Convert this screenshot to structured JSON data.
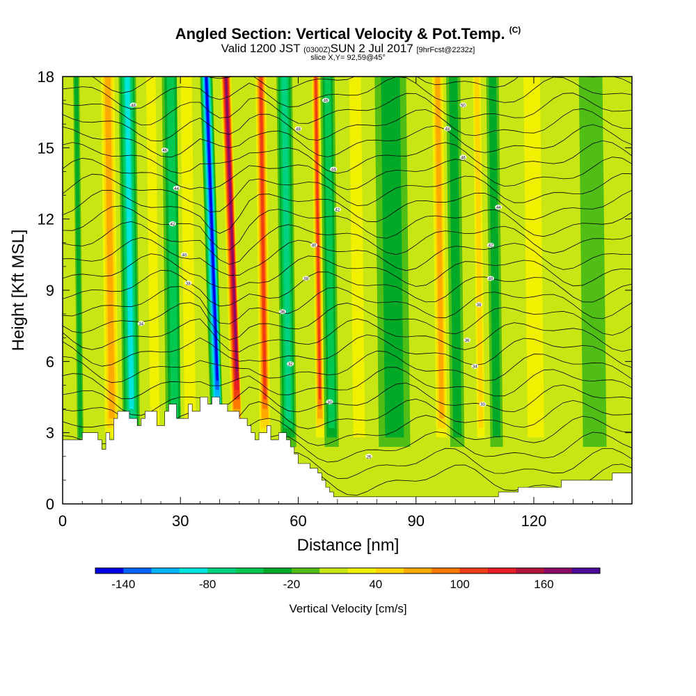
{
  "title": {
    "main": "Angled Section: Vertical Velocity & Pot.Temp.",
    "units": "(C)",
    "valid_prefix": "Valid 1200 JST",
    "valid_utc": "(0300Z)",
    "valid_date": "SUN 2 Jul 2017",
    "forecast": "[9hrFcst@2232z]",
    "slice": "slice X,Y= 92,59@45°"
  },
  "chart_data": {
    "type": "heatmap",
    "xlabel": "Distance [nm]",
    "ylabel": "Height [Kft MSL]",
    "xlim": [
      0,
      145
    ],
    "ylim": [
      0,
      18
    ],
    "x_ticks": [
      0,
      30,
      60,
      90,
      120
    ],
    "y_ticks": [
      0,
      3,
      6,
      9,
      12,
      15,
      18
    ],
    "colorbar": {
      "label": "Vertical Velocity [cm/s]",
      "ticks": [
        "-140",
        "-80",
        "-20",
        "40",
        "100",
        "160"
      ],
      "levels": [
        -160,
        -140,
        -120,
        -100,
        -80,
        -60,
        -40,
        -20,
        0,
        20,
        40,
        60,
        80,
        100,
        120,
        140,
        160,
        180
      ],
      "colors": [
        "#0000e6",
        "#0064ff",
        "#00b4ff",
        "#00e6dc",
        "#00d282",
        "#00c850",
        "#00aa28",
        "#50be14",
        "#c8e614",
        "#f0f000",
        "#ffd700",
        "#ffaa00",
        "#ff7800",
        "#f03c14",
        "#e61e28",
        "#b4143c",
        "#8c0a64",
        "#4b0a96"
      ]
    },
    "updraft_columns": [
      {
        "x": 4,
        "w": 0.8,
        "peak_cm_s": -40
      },
      {
        "x": 12,
        "w": 2.2,
        "peak_cm_s": 70
      },
      {
        "x": 17,
        "w": 2.2,
        "peak_cm_s": -100
      },
      {
        "x": 23,
        "w": 2.0,
        "peak_cm_s": 40
      },
      {
        "x": 28,
        "w": 2.2,
        "peak_cm_s": -60
      },
      {
        "x": 32,
        "w": 2.4,
        "peak_cm_s": 40
      },
      {
        "x": 38,
        "w": 1.6,
        "peak_cm_s": -150
      },
      {
        "x": 43,
        "w": 1.5,
        "peak_cm_s": 170
      },
      {
        "x": 51,
        "w": 1.6,
        "peak_cm_s": 110
      },
      {
        "x": 57,
        "w": 2.0,
        "peak_cm_s": -80
      },
      {
        "x": 65,
        "w": 1.2,
        "peak_cm_s": 120
      },
      {
        "x": 68,
        "w": 1.8,
        "peak_cm_s": -60
      },
      {
        "x": 75,
        "w": 2.5,
        "peak_cm_s": 30
      },
      {
        "x": 84,
        "w": 4.0,
        "peak_cm_s": -30
      },
      {
        "x": 96,
        "w": 1.8,
        "peak_cm_s": 70
      },
      {
        "x": 100,
        "w": 1.8,
        "peak_cm_s": -40
      },
      {
        "x": 106,
        "w": 1.4,
        "peak_cm_s": 60
      },
      {
        "x": 110,
        "w": 1.6,
        "peak_cm_s": -40
      },
      {
        "x": 120,
        "w": 3.5,
        "peak_cm_s": 40
      },
      {
        "x": 135,
        "w": 3.0,
        "peak_cm_s": -20
      }
    ],
    "terrain_kft": {
      "x": [
        0,
        5,
        9,
        10,
        11,
        12,
        13,
        14,
        17,
        19,
        20,
        21,
        24,
        26,
        27,
        29,
        32,
        33,
        35,
        37,
        38,
        39,
        40,
        42,
        45,
        47,
        48,
        49,
        50,
        51,
        52,
        53,
        55,
        57,
        58,
        59,
        60,
        61,
        62,
        63,
        64,
        65,
        66,
        67,
        68,
        69,
        70,
        73,
        76,
        80,
        87,
        96,
        106,
        110,
        111,
        114,
        116,
        120,
        127,
        132,
        140,
        145
      ],
      "kft": [
        2.7,
        3.0,
        2.7,
        2.3,
        3.0,
        2.7,
        3.6,
        3.9,
        3.6,
        3.3,
        3.6,
        3.9,
        3.3,
        3.9,
        4.2,
        3.6,
        4.2,
        3.9,
        4.5,
        4.2,
        4.5,
        4.5,
        4.2,
        3.9,
        3.6,
        3.3,
        3.0,
        2.7,
        3.0,
        3.0,
        3.3,
        2.7,
        3.0,
        2.7,
        2.4,
        2.1,
        1.7,
        1.7,
        1.7,
        1.5,
        1.5,
        1.3,
        1.0,
        0.7,
        0.5,
        0.3,
        0.3,
        0.3,
        0.3,
        0.3,
        0.3,
        0.3,
        0.3,
        0.3,
        0.5,
        0.5,
        0.7,
        0.7,
        1.0,
        1.0,
        1.3,
        1.3
      ]
    },
    "isentrope_labels": [
      {
        "text": "48",
        "x": 18,
        "y": 16.8
      },
      {
        "text": "46",
        "x": 26,
        "y": 14.9
      },
      {
        "text": "44",
        "x": 29,
        "y": 13.3
      },
      {
        "text": "42",
        "x": 28,
        "y": 11.8
      },
      {
        "text": "40",
        "x": 31,
        "y": 10.5
      },
      {
        "text": "38",
        "x": 32,
        "y": 9.3
      },
      {
        "text": "34",
        "x": 20,
        "y": 7.6
      },
      {
        "text": "46",
        "x": 67,
        "y": 17.0
      },
      {
        "text": "48",
        "x": 60,
        "y": 15.8
      },
      {
        "text": "44",
        "x": 69,
        "y": 14.1
      },
      {
        "text": "42",
        "x": 70,
        "y": 12.4
      },
      {
        "text": "40",
        "x": 64,
        "y": 10.9
      },
      {
        "text": "38",
        "x": 62,
        "y": 9.5
      },
      {
        "text": "36",
        "x": 56,
        "y": 8.1
      },
      {
        "text": "32",
        "x": 58,
        "y": 5.9
      },
      {
        "text": "30",
        "x": 68,
        "y": 4.3
      },
      {
        "text": "26",
        "x": 78,
        "y": 2.0
      },
      {
        "text": "50",
        "x": 102,
        "y": 16.8
      },
      {
        "text": "48",
        "x": 98,
        "y": 15.8
      },
      {
        "text": "46",
        "x": 102,
        "y": 14.6
      },
      {
        "text": "44",
        "x": 111,
        "y": 12.5
      },
      {
        "text": "42",
        "x": 109,
        "y": 10.9
      },
      {
        "text": "40",
        "x": 109,
        "y": 9.5
      },
      {
        "text": "38",
        "x": 106,
        "y": 8.4
      },
      {
        "text": "36",
        "x": 103,
        "y": 6.9
      },
      {
        "text": "34",
        "x": 105,
        "y": 5.8
      },
      {
        "text": "30",
        "x": 107,
        "y": 4.2
      }
    ]
  }
}
